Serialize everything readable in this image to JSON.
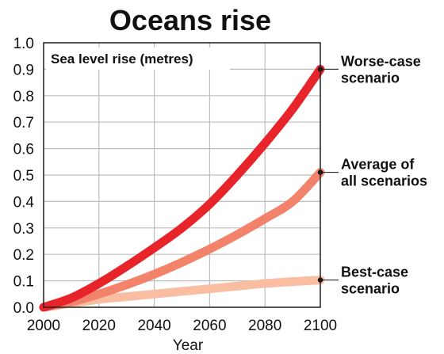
{
  "chart_data": {
    "type": "line",
    "title": "Oceans rise",
    "ylabel": "Sea level rise (metres)",
    "xlabel": "Year",
    "xlim": [
      2000,
      2100
    ],
    "ylim": [
      0,
      1.0
    ],
    "x_ticks": [
      "2000",
      "2020",
      "2040",
      "2060",
      "2080",
      "2100"
    ],
    "y_ticks": [
      "0.0",
      "0.1",
      "0.2",
      "0.3",
      "0.4",
      "0.5",
      "0.6",
      "0.7",
      "0.8",
      "0.9",
      "1.0"
    ],
    "grid": true,
    "series": [
      {
        "name": "Best-case scenario",
        "label_lines": [
          "Best-case",
          "scenario"
        ],
        "color": "#f9bea2",
        "x": [
          2000,
          2010,
          2020,
          2030,
          2040,
          2050,
          2060,
          2070,
          2080,
          2090,
          2100
        ],
        "values": [
          0.0,
          0.015,
          0.03,
          0.04,
          0.05,
          0.06,
          0.07,
          0.08,
          0.09,
          0.097,
          0.103
        ]
      },
      {
        "name": "Average of all scenarios",
        "label_lines": [
          "Average of",
          "all scenarios"
        ],
        "color": "#f2836a",
        "x": [
          2000,
          2010,
          2020,
          2030,
          2040,
          2050,
          2060,
          2070,
          2080,
          2090,
          2100
        ],
        "values": [
          0.0,
          0.02,
          0.05,
          0.085,
          0.125,
          0.17,
          0.22,
          0.275,
          0.335,
          0.4,
          0.51
        ]
      },
      {
        "name": "Worse-case scenario",
        "label_lines": [
          "Worse-case",
          "scenario"
        ],
        "color": "#e8242b",
        "x": [
          2000,
          2010,
          2020,
          2030,
          2040,
          2050,
          2060,
          2070,
          2080,
          2090,
          2100
        ],
        "values": [
          0.0,
          0.035,
          0.09,
          0.155,
          0.225,
          0.3,
          0.39,
          0.5,
          0.62,
          0.75,
          0.9
        ]
      }
    ]
  }
}
